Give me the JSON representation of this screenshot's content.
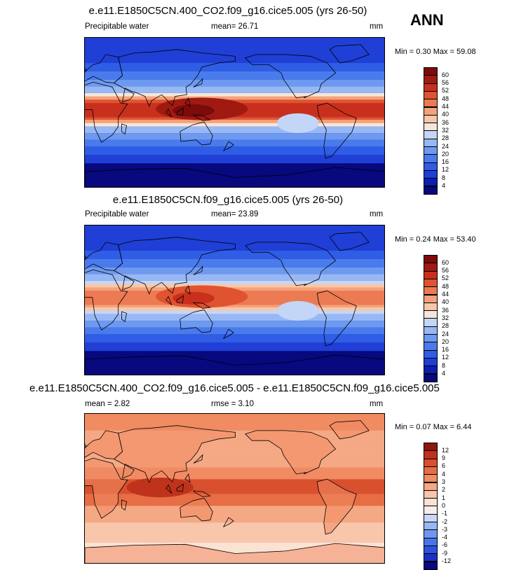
{
  "season": "ANN",
  "panels": [
    {
      "id": "top",
      "title": "e.e11.E1850C5CN.400_CO2.f09_g16.cice5.005 (yrs 26-50)",
      "left_label": "Precipitable water",
      "center_label": "mean=  26.71",
      "right_label": "mm",
      "minmax": "Min =   0.30 Max =  59.08",
      "colorbar_labels": [
        "60",
        "56",
        "52",
        "48",
        "44",
        "40",
        "36",
        "32",
        "28",
        "24",
        "20",
        "16",
        "12",
        "8",
        "4"
      ],
      "scheme": "absolute",
      "tropical_scale": 1.0
    },
    {
      "id": "middle",
      "title": "e.e11.E1850C5CN.f09_g16.cice5.005 (yrs 26-50)",
      "left_label": "Precipitable water",
      "center_label": "mean=  23.89",
      "right_label": "mm",
      "minmax": "Min =   0.24 Max =  53.40",
      "colorbar_labels": [
        "60",
        "56",
        "52",
        "48",
        "44",
        "40",
        "36",
        "32",
        "28",
        "24",
        "20",
        "16",
        "12",
        "8",
        "4"
      ],
      "scheme": "absolute",
      "tropical_scale": 0.85
    },
    {
      "id": "bottom",
      "title": "e.e11.E1850C5CN.400_CO2.f09_g16.cice5.005 - e.e11.E1850C5CN.f09_g16.cice5.005",
      "left_label": "mean =   2.82",
      "center_label": "rmse =   3.10",
      "right_label": "mm",
      "minmax": "Min =   0.07 Max =   6.44",
      "colorbar_labels": [
        "12",
        "9",
        "6",
        "4",
        "3",
        "2",
        "1",
        "0",
        "-1",
        "-2",
        "-3",
        "-4",
        "-6",
        "-9",
        "-12"
      ],
      "scheme": "difference",
      "tropical_scale": 1.0
    }
  ],
  "colors": {
    "absolute": [
      "#08087f",
      "#0a1fb0",
      "#1f3fd6",
      "#2f5de6",
      "#4a7bed",
      "#6d99f0",
      "#97b8f4",
      "#c3d6f7",
      "#f5e6d8",
      "#f7c7aa",
      "#f4a27c",
      "#ec7a52",
      "#df5331",
      "#c8301d",
      "#a11a12",
      "#7c0b0b"
    ],
    "difference": [
      "#0a0a80",
      "#1d2fc2",
      "#2e52e0",
      "#4a75ea",
      "#6e98f0",
      "#98b8f4",
      "#c6d7f7",
      "#f6ecea",
      "#fbe3d4",
      "#f8c6aa",
      "#f5a884",
      "#f08b62",
      "#e76d44",
      "#d8502e",
      "#bf321c",
      "#8f160d"
    ]
  }
}
